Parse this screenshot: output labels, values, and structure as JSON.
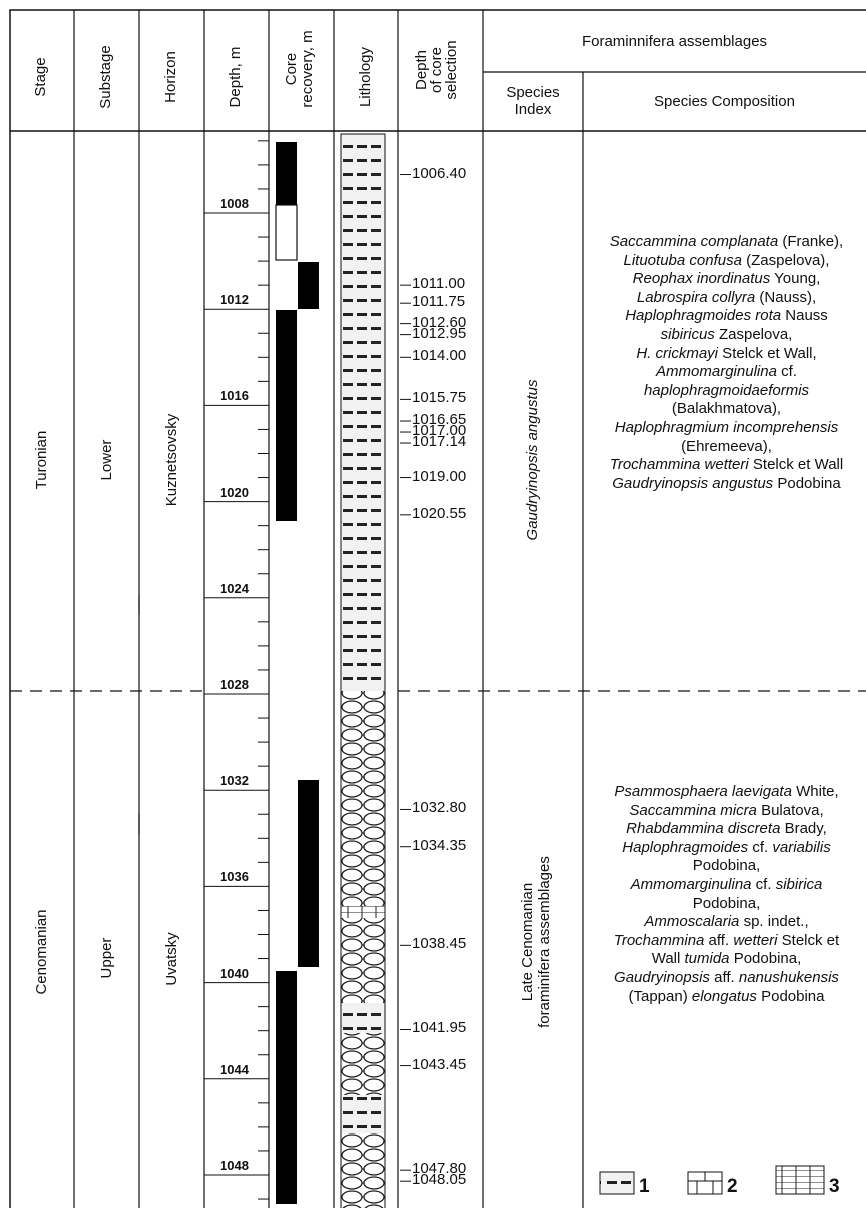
{
  "headers": {
    "stage": "Stage",
    "substage": "Substage",
    "horizon": "Horizon",
    "depth": "Depth, m",
    "core_recovery_line1": "Core",
    "core_recovery_line2": "recovery, m",
    "lithology": "Lithology",
    "depth_sel_line1": "Depth",
    "depth_sel_line2": "of core",
    "depth_sel_line3": "selection",
    "forams": "Foraminnifera assemblages",
    "species_index_line1": "Species",
    "species_index_line2": "Index",
    "species_composition": "Species Composition"
  },
  "stages": {
    "upper_unit": "Turonian",
    "lower_unit": "Cenomanian"
  },
  "substages": {
    "upper_unit": "Lower",
    "lower_unit": "Upper"
  },
  "horizons": {
    "upper_unit": "Kuznetsovsky",
    "lower_unit": "Uvatsky"
  },
  "depth_ticks": [
    "1008",
    "1012",
    "1016",
    "1020",
    "1024",
    "1028",
    "1032",
    "1036",
    "1040",
    "1044",
    "1048"
  ],
  "selection_depths": [
    "1006.40",
    "1011.00",
    "1011.75",
    "1012.60",
    "1012.95",
    "1014.00",
    "1015.75",
    "1016.65",
    "1017.00",
    "1017.14",
    "1019.00",
    "1020.55",
    "1032.80",
    "1034.35",
    "1038.45",
    "1041.95",
    "1043.45",
    "1047.80",
    "1048.05"
  ],
  "species_index": {
    "upper": "Gaudryinopsis angustus",
    "lower_line1": "Late Cenomanian",
    "lower_line2": "foraminifera assemblages"
  },
  "species_composition_upper": [
    [
      {
        "t": "Saccammina complanata",
        "i": true
      },
      {
        "t": " (Franke),",
        "i": false
      }
    ],
    [
      {
        "t": "Lituotuba confusa",
        "i": true
      },
      {
        "t": " (Zaspelova),",
        "i": false
      }
    ],
    [
      {
        "t": "Reophax inordinatus",
        "i": true
      },
      {
        "t": " Young,",
        "i": false
      }
    ],
    [
      {
        "t": "Labrospira collyra",
        "i": true
      },
      {
        "t": " (Nauss),",
        "i": false
      }
    ],
    [
      {
        "t": "Haplophragmoides rota",
        "i": true
      },
      {
        "t": " Nauss",
        "i": false
      }
    ],
    [
      {
        "t": "sibiricus",
        "i": true
      },
      {
        "t": " Zaspelova,",
        "i": false
      }
    ],
    [
      {
        "t": "H. crickmayi",
        "i": true
      },
      {
        "t": " Stelck et Wall,",
        "i": false
      }
    ],
    [
      {
        "t": "Ammomarginulina",
        "i": true
      },
      {
        "t": " cf.",
        "i": false
      }
    ],
    [
      {
        "t": "haplophragmoidaeformis",
        "i": true
      }
    ],
    [
      {
        "t": "(Balakhmatova),",
        "i": false
      }
    ],
    [
      {
        "t": "Haplophragmium incomprehensis",
        "i": true
      }
    ],
    [
      {
        "t": "(Ehremeeva),",
        "i": false
      }
    ],
    [
      {
        "t": "Trochammina wetteri",
        "i": true
      },
      {
        "t": " Stelck et Wall",
        "i": false
      }
    ],
    [
      {
        "t": "Gaudryinopsis angustus",
        "i": true
      },
      {
        "t": " Podobina",
        "i": false
      }
    ]
  ],
  "species_composition_lower": [
    [
      {
        "t": "Psammosphaera laevigata",
        "i": true
      },
      {
        "t": " White,",
        "i": false
      }
    ],
    [
      {
        "t": "Saccammina micra",
        "i": true
      },
      {
        "t": " Bulatova,",
        "i": false
      }
    ],
    [
      {
        "t": "Rhabdammina discreta",
        "i": true
      },
      {
        "t": " Brady,",
        "i": false
      }
    ],
    [
      {
        "t": "Haplophragmoides",
        "i": true
      },
      {
        "t": " cf. ",
        "i": false
      },
      {
        "t": "variabilis",
        "i": true
      }
    ],
    [
      {
        "t": "Podobina,",
        "i": false
      }
    ],
    [
      {
        "t": "Ammomarginulina",
        "i": true
      },
      {
        "t": " cf. ",
        "i": false
      },
      {
        "t": "sibirica",
        "i": true
      }
    ],
    [
      {
        "t": "Podobina,",
        "i": false
      }
    ],
    [
      {
        "t": "Ammoscalaria",
        "i": true
      },
      {
        "t": " sp. indet.,",
        "i": false
      }
    ],
    [
      {
        "t": "Trochammina",
        "i": true
      },
      {
        "t": " aff. ",
        "i": false
      },
      {
        "t": "wetteri",
        "i": true
      },
      {
        "t": " Stelck et",
        "i": false
      }
    ],
    [
      {
        "t": "Wall ",
        "i": false
      },
      {
        "t": "tumida",
        "i": true
      },
      {
        "t": " Podobina,",
        "i": false
      }
    ],
    [
      {
        "t": "Gaudryinopsis",
        "i": true
      },
      {
        "t": " aff. ",
        "i": false
      },
      {
        "t": "nanushukensis",
        "i": true
      }
    ],
    [
      {
        "t": "(Tappan) ",
        "i": false
      },
      {
        "t": "elongatus",
        "i": true
      },
      {
        "t": " Podobina",
        "i": false
      }
    ]
  ],
  "legend": [
    "1",
    "2",
    "3"
  ]
}
